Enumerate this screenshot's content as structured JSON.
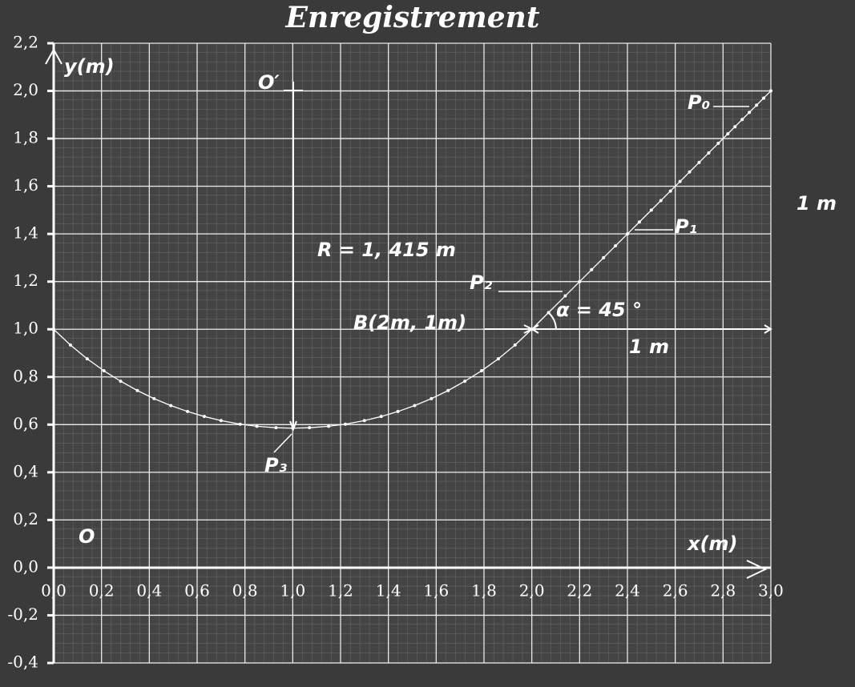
{
  "chart_data": {
    "type": "scatter",
    "title": "Enregistrement",
    "xlim": [
      0,
      3.0
    ],
    "ylim": [
      -0.4,
      2.2
    ],
    "xticks": [
      {
        "value": 0,
        "label": "0,0"
      },
      {
        "value": 0.2,
        "label": "0,2"
      },
      {
        "value": 0.4,
        "label": "0,4"
      },
      {
        "value": 0.6,
        "label": "0,6"
      },
      {
        "value": 0.8,
        "label": "0,8"
      },
      {
        "value": 1.0,
        "label": "1,0"
      },
      {
        "value": 1.2,
        "label": "1,2"
      },
      {
        "value": 1.4,
        "label": "1,4"
      },
      {
        "value": 1.6,
        "label": "1,6"
      },
      {
        "value": 1.8,
        "label": "1,8"
      },
      {
        "value": 2.0,
        "label": "2,0"
      },
      {
        "value": 2.2,
        "label": "2,2"
      },
      {
        "value": 2.4,
        "label": "2,4"
      },
      {
        "value": 2.6,
        "label": "2,6"
      },
      {
        "value": 2.8,
        "label": "2,8"
      },
      {
        "value": 3.0,
        "label": "3,0"
      }
    ],
    "yticks": [
      {
        "value": -0.4,
        "label": "-0,4"
      },
      {
        "value": -0.2,
        "label": "-0,2"
      },
      {
        "value": 0,
        "label": "0,0"
      },
      {
        "value": 0.2,
        "label": "0,2"
      },
      {
        "value": 0.4,
        "label": "0,4"
      },
      {
        "value": 0.6,
        "label": "0,6"
      },
      {
        "value": 0.8,
        "label": "0,8"
      },
      {
        "value": 1.0,
        "label": "1,0"
      },
      {
        "value": 1.2,
        "label": "1,2"
      },
      {
        "value": 1.4,
        "label": "1,4"
      },
      {
        "value": 1.6,
        "label": "1,6"
      },
      {
        "value": 1.8,
        "label": "1,8"
      },
      {
        "value": 2.0,
        "label": "2,0"
      },
      {
        "value": 2.2,
        "label": "2,2"
      }
    ],
    "grid": true,
    "series": [
      {
        "color": "#ffffff",
        "x": [
          3.0,
          2.97,
          2.94,
          2.91,
          2.88,
          2.85,
          2.82,
          2.78,
          2.74,
          2.7,
          2.66,
          2.62,
          2.58,
          2.54,
          2.5,
          2.45,
          2.4,
          2.35,
          2.3,
          2.25,
          2.2,
          2.14,
          2.07,
          2.0,
          1.93,
          1.86,
          1.79,
          1.72,
          1.65,
          1.58,
          1.51,
          1.44,
          1.37,
          1.3,
          1.22,
          1.15,
          1.07,
          1.0,
          0.93,
          0.85,
          0.78,
          0.7,
          0.63,
          0.56,
          0.49,
          0.42,
          0.35,
          0.28,
          0.21,
          0.14,
          0.07,
          0.0
        ],
        "values": [
          2.0,
          1.97,
          1.94,
          1.91,
          1.88,
          1.85,
          1.82,
          1.78,
          1.74,
          1.7,
          1.66,
          1.62,
          1.58,
          1.54,
          1.5,
          1.45,
          1.4,
          1.35,
          1.3,
          1.25,
          1.2,
          1.14,
          1.07,
          1.0,
          0.934,
          0.876,
          0.826,
          0.782,
          0.743,
          0.709,
          0.68,
          0.655,
          0.634,
          0.617,
          0.602,
          0.593,
          0.587,
          0.585,
          0.587,
          0.593,
          0.602,
          0.617,
          0.634,
          0.655,
          0.68,
          0.709,
          0.743,
          0.782,
          0.826,
          0.876,
          0.934,
          1.0
        ]
      }
    ],
    "annotations": [
      "y(m)",
      "x(m)",
      "O′",
      "O",
      "R = 1, 415 m",
      "B(2m, 1m)",
      "α = 45 °",
      "1 m",
      "1 m",
      "P₀",
      "P₁",
      "P₂",
      "P₃"
    ]
  }
}
